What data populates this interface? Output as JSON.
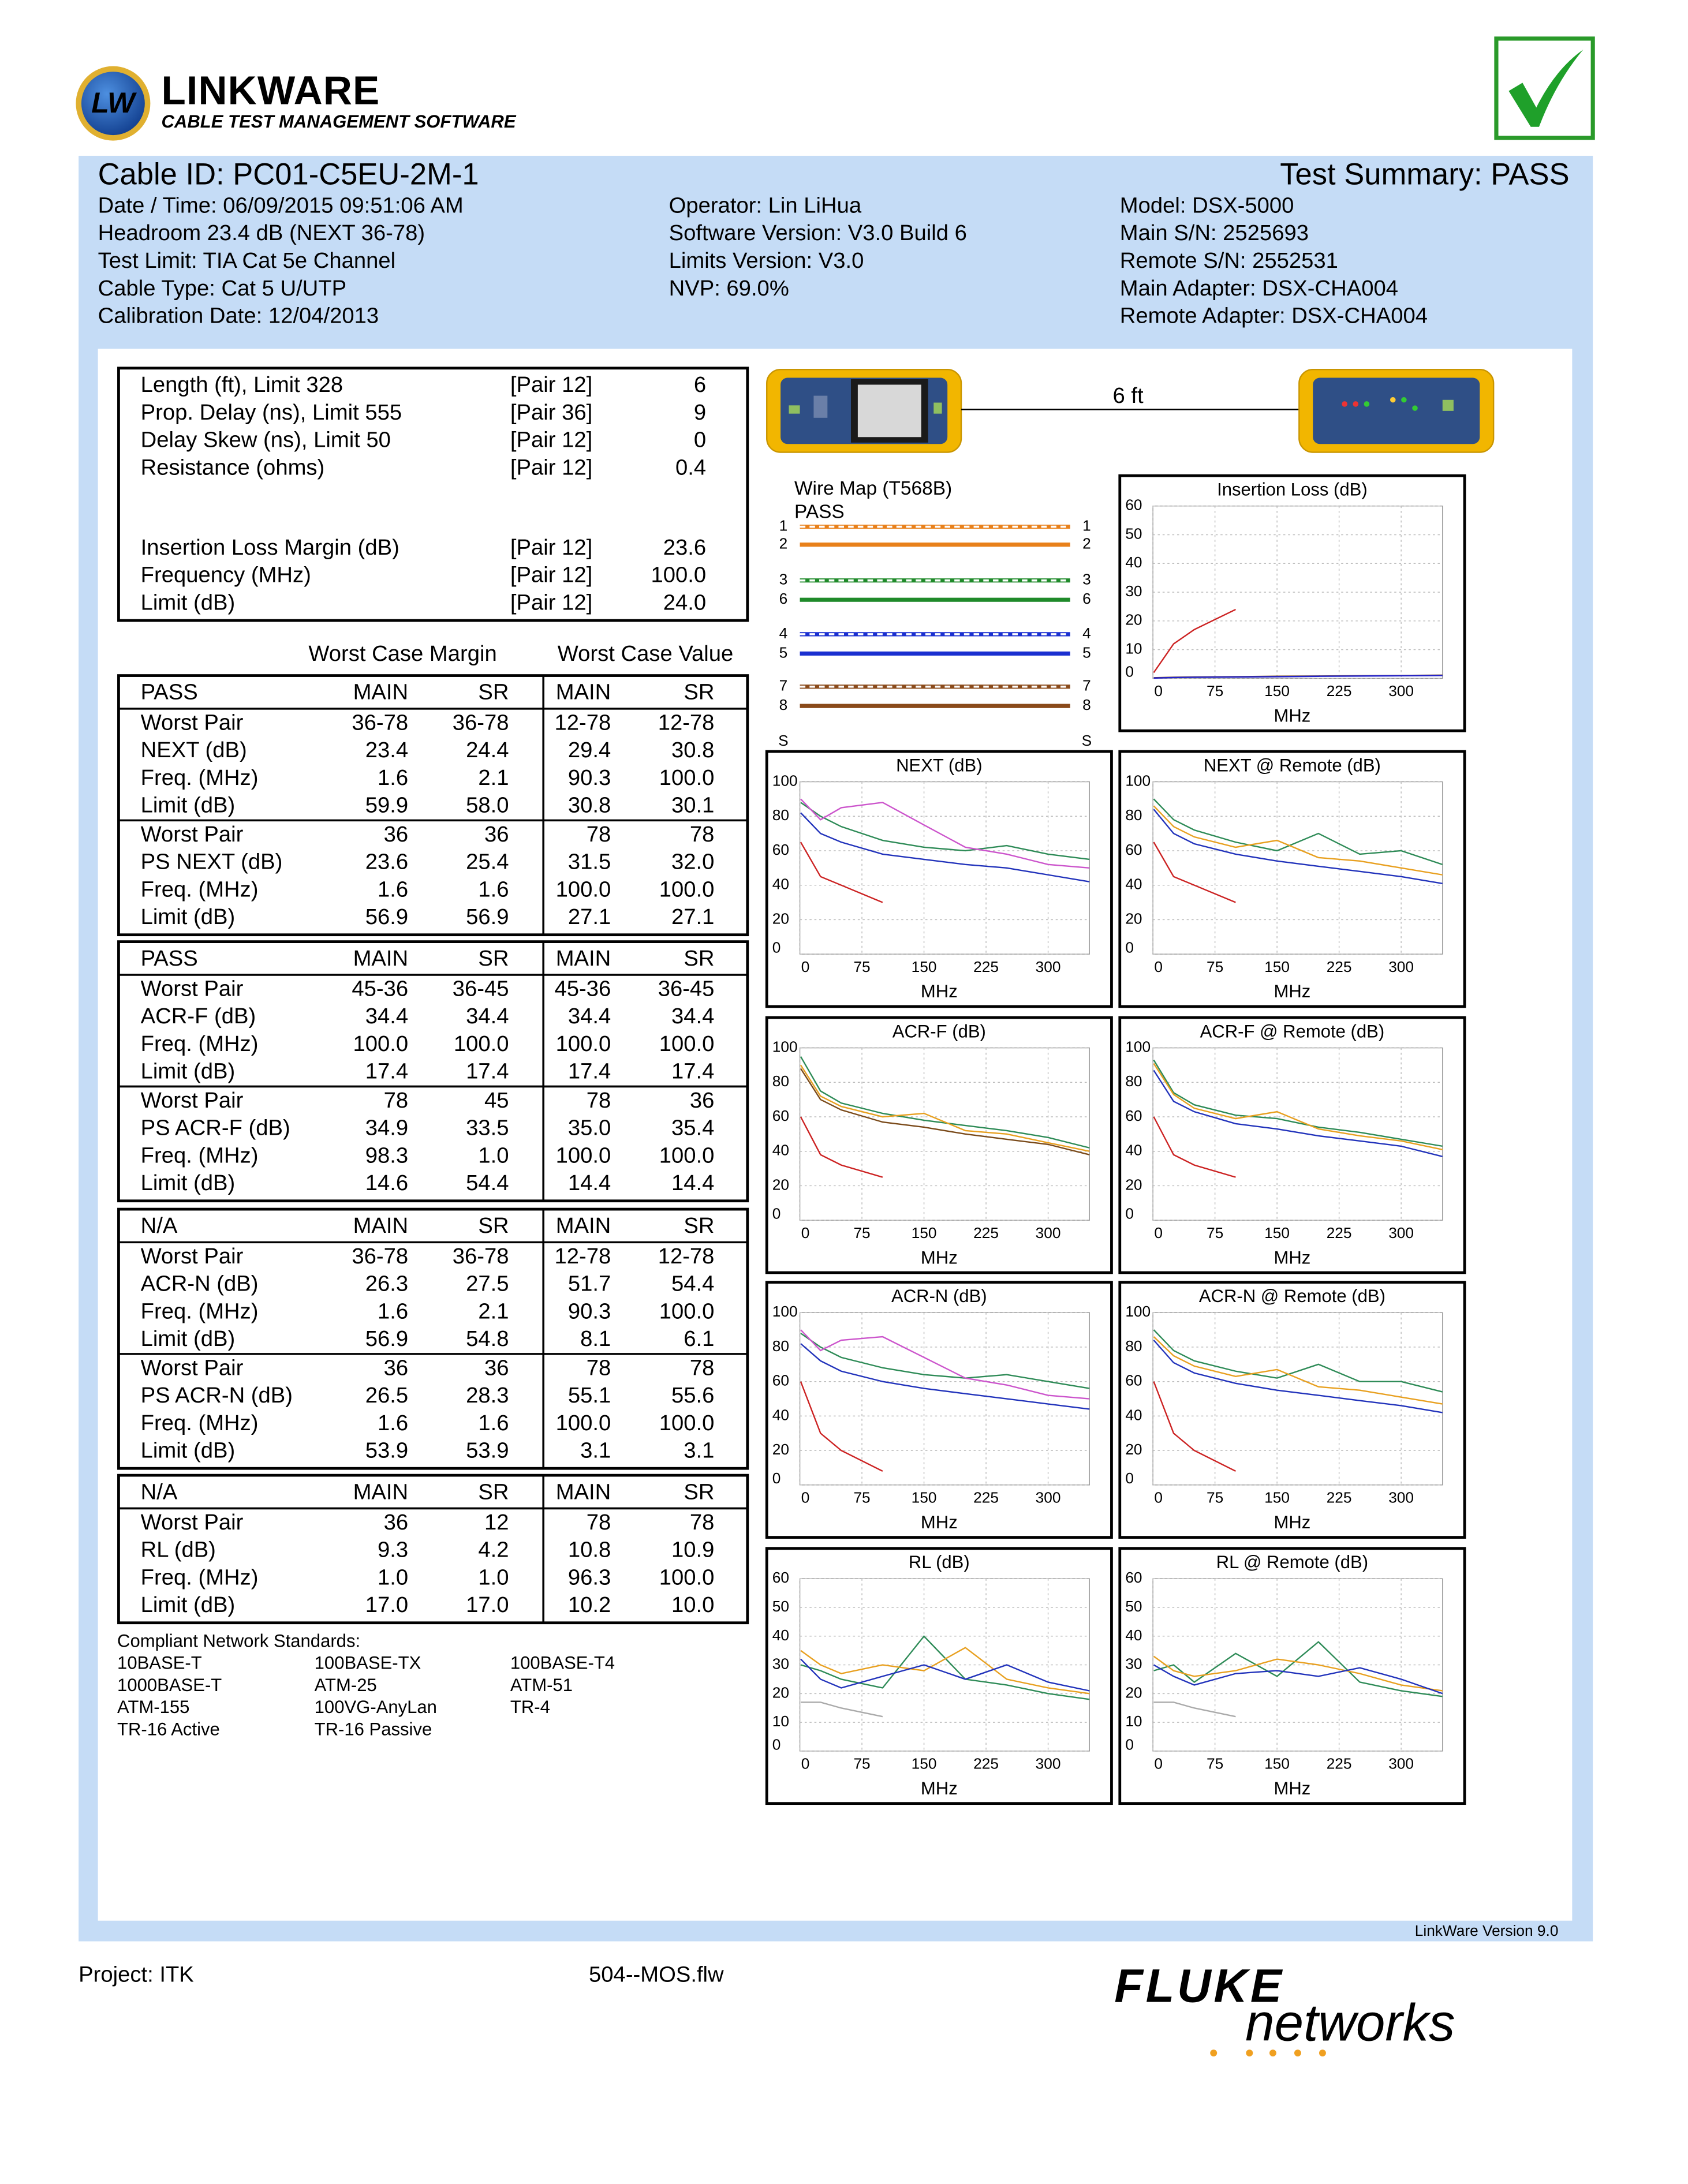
{
  "header": {
    "badge": "LW",
    "title": "LINKWARE",
    "subtitle": "CABLE TEST MANAGEMENT SOFTWARE"
  },
  "summary": {
    "cable_id": "Cable ID: PC01-C5EU-2M-1",
    "test_summary": "Test Summary: PASS",
    "left": [
      "Date / Time: 06/09/2015  09:51:06 AM",
      "Headroom 23.4 dB (NEXT 36-78)",
      "Test Limit: TIA Cat 5e Channel",
      "Cable Type: Cat 5 U/UTP",
      "Calibration Date: 12/04/2013"
    ],
    "middle": [
      "Operator: Lin LiHua",
      "Software Version: V3.0 Build 6",
      "Limits Version: V3.0",
      "NVP: 69.0%"
    ],
    "right": [
      "Model: DSX-5000",
      "Main S/N: 2525693",
      "Remote S/N: 2552531",
      "Main Adapter: DSX-CHA004",
      "Remote Adapter: DSX-CHA004"
    ]
  },
  "basic": {
    "rows": [
      [
        "Length (ft), Limit 328",
        "[Pair 12]",
        "6"
      ],
      [
        "Prop. Delay (ns), Limit 555",
        "[Pair 36]",
        "9"
      ],
      [
        "Delay Skew (ns), Limit 50",
        "[Pair 12]",
        "0"
      ],
      [
        "Resistance (ohms)",
        "[Pair 12]",
        "0.4"
      ]
    ],
    "il_rows": [
      [
        "Insertion Loss Margin (dB)",
        "[Pair 12]",
        "23.6"
      ],
      [
        "Frequency (MHz)",
        "[Pair 12]",
        "100.0"
      ],
      [
        "Limit (dB)",
        "[Pair 12]",
        "24.0"
      ]
    ]
  },
  "worst_case": [
    "Worst Case Margin",
    "Worst Case Value"
  ],
  "tables": [
    {
      "header": [
        "PASS",
        "MAIN",
        "SR",
        "MAIN",
        "SR"
      ],
      "rows": [
        [
          "Worst Pair",
          "36-78",
          "36-78",
          "12-78",
          "12-78"
        ],
        [
          "NEXT (dB)",
          "23.4",
          "24.4",
          "29.4",
          "30.8"
        ],
        [
          "Freq. (MHz)",
          "1.6",
          "2.1",
          "90.3",
          "100.0"
        ],
        [
          "Limit (dB)",
          "59.9",
          "58.0",
          "30.8",
          "30.1"
        ],
        [
          "Worst Pair",
          "36",
          "36",
          "78",
          "78"
        ],
        [
          "PS NEXT (dB)",
          "23.6",
          "25.4",
          "31.5",
          "32.0"
        ],
        [
          "Freq. (MHz)",
          "1.6",
          "1.6",
          "100.0",
          "100.0"
        ],
        [
          "Limit (dB)",
          "56.9",
          "56.9",
          "27.1",
          "27.1"
        ]
      ]
    },
    {
      "header": [
        "PASS",
        "MAIN",
        "SR",
        "MAIN",
        "SR"
      ],
      "rows": [
        [
          "Worst Pair",
          "45-36",
          "36-45",
          "45-36",
          "36-45"
        ],
        [
          "ACR-F (dB)",
          "34.4",
          "34.4",
          "34.4",
          "34.4"
        ],
        [
          "Freq. (MHz)",
          "100.0",
          "100.0",
          "100.0",
          "100.0"
        ],
        [
          "Limit (dB)",
          "17.4",
          "17.4",
          "17.4",
          "17.4"
        ],
        [
          "Worst Pair",
          "78",
          "45",
          "78",
          "36"
        ],
        [
          "PS ACR-F (dB)",
          "34.9",
          "33.5",
          "35.0",
          "35.4"
        ],
        [
          "Freq. (MHz)",
          "98.3",
          "1.0",
          "100.0",
          "100.0"
        ],
        [
          "Limit (dB)",
          "14.6",
          "54.4",
          "14.4",
          "14.4"
        ]
      ]
    },
    {
      "header": [
        "N/A",
        "MAIN",
        "SR",
        "MAIN",
        "SR"
      ],
      "rows": [
        [
          "Worst Pair",
          "36-78",
          "36-78",
          "12-78",
          "12-78"
        ],
        [
          "ACR-N (dB)",
          "26.3",
          "27.5",
          "51.7",
          "54.4"
        ],
        [
          "Freq. (MHz)",
          "1.6",
          "2.1",
          "90.3",
          "100.0"
        ],
        [
          "Limit (dB)",
          "56.9",
          "54.8",
          "8.1",
          "6.1"
        ],
        [
          "Worst Pair",
          "36",
          "36",
          "78",
          "78"
        ],
        [
          "PS ACR-N (dB)",
          "26.5",
          "28.3",
          "55.1",
          "55.6"
        ],
        [
          "Freq. (MHz)",
          "1.6",
          "1.6",
          "100.0",
          "100.0"
        ],
        [
          "Limit (dB)",
          "53.9",
          "53.9",
          "3.1",
          "3.1"
        ]
      ]
    },
    {
      "header": [
        "N/A",
        "MAIN",
        "SR",
        "MAIN",
        "SR"
      ],
      "rows": [
        [
          "Worst Pair",
          "36",
          "12",
          "78",
          "78"
        ],
        [
          "RL (dB)",
          "9.3",
          "4.2",
          "10.8",
          "10.9"
        ],
        [
          "Freq. (MHz)",
          "1.0",
          "1.0",
          "96.3",
          "100.0"
        ],
        [
          "Limit (dB)",
          "17.0",
          "17.0",
          "10.2",
          "10.0"
        ]
      ]
    }
  ],
  "standards": {
    "title": "Compliant Network Standards:",
    "items": [
      [
        "10BASE-T",
        "100BASE-TX",
        "100BASE-T4"
      ],
      [
        "1000BASE-T",
        "ATM-25",
        "ATM-51"
      ],
      [
        "ATM-155",
        "100VG-AnyLan",
        "TR-4"
      ],
      [
        "TR-16 Active",
        "TR-16 Passive"
      ]
    ]
  },
  "cable_length": "6 ft",
  "wiremap": {
    "title": "Wire Map (T568B)",
    "result": "PASS",
    "left": [
      "1",
      "2",
      "3",
      "6",
      "4",
      "5",
      "7",
      "8",
      "S"
    ],
    "right": [
      "1",
      "2",
      "3",
      "6",
      "4",
      "5",
      "7",
      "8",
      "S"
    ]
  },
  "charts": [
    {
      "type": "line",
      "title": "Insertion Loss (dB)",
      "xlabel": "MHz",
      "xlim": [
        0,
        350
      ],
      "ylim": [
        0,
        60
      ],
      "xticks": [
        0,
        75,
        150,
        225,
        300
      ],
      "yticks": [
        0,
        10,
        20,
        30,
        40,
        50,
        60
      ],
      "x": [
        1,
        25,
        50,
        100,
        150,
        200,
        250,
        300,
        350
      ],
      "series": [
        {
          "color": "#cc2222",
          "values": [
            2,
            12,
            17,
            24,
            null,
            null,
            null,
            null,
            null
          ]
        },
        {
          "color": "#7a4a1a",
          "values": [
            0.2,
            0.4,
            0.5,
            0.6,
            0.7,
            0.8,
            0.9,
            1.0,
            1.1
          ]
        },
        {
          "color": "#2222cc",
          "values": [
            0.1,
            0.3,
            0.4,
            0.5,
            0.6,
            0.7,
            0.8,
            0.9,
            1.0
          ]
        }
      ]
    },
    {
      "type": "line",
      "title": "NEXT (dB)",
      "xlabel": "MHz",
      "xlim": [
        0,
        350
      ],
      "ylim": [
        0,
        100
      ],
      "xticks": [
        0,
        75,
        150,
        225,
        300
      ],
      "yticks": [
        0,
        20,
        40,
        60,
        80,
        100
      ],
      "x": [
        1,
        25,
        50,
        100,
        150,
        200,
        250,
        300,
        350
      ],
      "series": [
        {
          "color": "#cc2222",
          "values": [
            65,
            45,
            40,
            30,
            null,
            null,
            null,
            null,
            null
          ]
        },
        {
          "color": "#2e8b57",
          "values": [
            88,
            80,
            74,
            66,
            62,
            60,
            63,
            58,
            55
          ]
        },
        {
          "color": "#cc55cc",
          "values": [
            90,
            78,
            85,
            88,
            75,
            62,
            58,
            52,
            50
          ]
        },
        {
          "color": "#2233bb",
          "values": [
            82,
            70,
            65,
            58,
            55,
            52,
            50,
            46,
            42
          ]
        }
      ]
    },
    {
      "type": "line",
      "title": "NEXT @ Remote (dB)",
      "xlabel": "MHz",
      "xlim": [
        0,
        350
      ],
      "ylim": [
        0,
        100
      ],
      "xticks": [
        0,
        75,
        150,
        225,
        300
      ],
      "yticks": [
        0,
        20,
        40,
        60,
        80,
        100
      ],
      "x": [
        1,
        25,
        50,
        100,
        150,
        200,
        250,
        300,
        350
      ],
      "series": [
        {
          "color": "#cc2222",
          "values": [
            65,
            45,
            40,
            30,
            null,
            null,
            null,
            null,
            null
          ]
        },
        {
          "color": "#2e8b57",
          "values": [
            90,
            78,
            72,
            65,
            60,
            70,
            58,
            60,
            52
          ]
        },
        {
          "color": "#e8a020",
          "values": [
            86,
            74,
            68,
            62,
            66,
            56,
            54,
            50,
            46
          ]
        },
        {
          "color": "#2233bb",
          "values": [
            84,
            70,
            64,
            58,
            54,
            51,
            48,
            45,
            41
          ]
        }
      ]
    },
    {
      "type": "line",
      "title": "ACR-F (dB)",
      "xlabel": "MHz",
      "xlim": [
        0,
        350
      ],
      "ylim": [
        0,
        100
      ],
      "xticks": [
        0,
        75,
        150,
        225,
        300
      ],
      "yticks": [
        0,
        20,
        40,
        60,
        80,
        100
      ],
      "x": [
        1,
        25,
        50,
        100,
        150,
        200,
        250,
        300,
        350
      ],
      "series": [
        {
          "color": "#cc2222",
          "values": [
            60,
            38,
            32,
            25,
            null,
            null,
            null,
            null,
            null
          ]
        },
        {
          "color": "#2e8b57",
          "values": [
            95,
            75,
            68,
            62,
            58,
            55,
            52,
            48,
            42
          ]
        },
        {
          "color": "#e8a020",
          "values": [
            90,
            72,
            66,
            60,
            62,
            52,
            50,
            45,
            40
          ]
        },
        {
          "color": "#7a4a1a",
          "values": [
            88,
            70,
            64,
            57,
            54,
            50,
            47,
            44,
            38
          ]
        }
      ]
    },
    {
      "type": "line",
      "title": "ACR-F @ Remote (dB)",
      "xlabel": "MHz",
      "xlim": [
        0,
        350
      ],
      "ylim": [
        0,
        100
      ],
      "xticks": [
        0,
        75,
        150,
        225,
        300
      ],
      "yticks": [
        0,
        20,
        40,
        60,
        80,
        100
      ],
      "x": [
        1,
        25,
        50,
        100,
        150,
        200,
        250,
        300,
        350
      ],
      "series": [
        {
          "color": "#cc2222",
          "values": [
            60,
            38,
            32,
            25,
            null,
            null,
            null,
            null,
            null
          ]
        },
        {
          "color": "#2e8b57",
          "values": [
            93,
            74,
            67,
            61,
            59,
            54,
            51,
            47,
            43
          ]
        },
        {
          "color": "#e8a020",
          "values": [
            91,
            73,
            65,
            59,
            63,
            53,
            49,
            46,
            41
          ]
        },
        {
          "color": "#2233bb",
          "values": [
            87,
            69,
            63,
            56,
            53,
            49,
            46,
            43,
            37
          ]
        }
      ]
    },
    {
      "type": "line",
      "title": "ACR-N (dB)",
      "xlabel": "MHz",
      "xlim": [
        0,
        350
      ],
      "ylim": [
        0,
        100
      ],
      "xticks": [
        0,
        75,
        150,
        225,
        300
      ],
      "yticks": [
        0,
        20,
        40,
        60,
        80,
        100
      ],
      "x": [
        1,
        25,
        50,
        100,
        150,
        200,
        250,
        300,
        350
      ],
      "series": [
        {
          "color": "#cc2222",
          "values": [
            60,
            30,
            20,
            8,
            null,
            null,
            null,
            null,
            null
          ]
        },
        {
          "color": "#2e8b57",
          "values": [
            88,
            80,
            74,
            68,
            64,
            62,
            64,
            60,
            56
          ]
        },
        {
          "color": "#cc55cc",
          "values": [
            90,
            78,
            84,
            86,
            74,
            62,
            58,
            52,
            50
          ]
        },
        {
          "color": "#2233bb",
          "values": [
            82,
            72,
            66,
            60,
            56,
            53,
            50,
            47,
            44
          ]
        }
      ]
    },
    {
      "type": "line",
      "title": "ACR-N @ Remote (dB)",
      "xlabel": "MHz",
      "xlim": [
        0,
        350
      ],
      "ylim": [
        0,
        100
      ],
      "xticks": [
        0,
        75,
        150,
        225,
        300
      ],
      "yticks": [
        0,
        20,
        40,
        60,
        80,
        100
      ],
      "x": [
        1,
        25,
        50,
        100,
        150,
        200,
        250,
        300,
        350
      ],
      "series": [
        {
          "color": "#cc2222",
          "values": [
            60,
            30,
            20,
            8,
            null,
            null,
            null,
            null,
            null
          ]
        },
        {
          "color": "#2e8b57",
          "values": [
            90,
            78,
            72,
            66,
            62,
            70,
            60,
            60,
            54
          ]
        },
        {
          "color": "#e8a020",
          "values": [
            86,
            75,
            69,
            63,
            67,
            57,
            55,
            51,
            47
          ]
        },
        {
          "color": "#2233bb",
          "values": [
            84,
            71,
            65,
            59,
            55,
            52,
            49,
            46,
            42
          ]
        }
      ]
    },
    {
      "type": "line",
      "title": "RL (dB)",
      "xlabel": "MHz",
      "xlim": [
        0,
        350
      ],
      "ylim": [
        0,
        60
      ],
      "xticks": [
        0,
        75,
        150,
        225,
        300
      ],
      "yticks": [
        0,
        10,
        20,
        30,
        40,
        50,
        60
      ],
      "x": [
        1,
        25,
        50,
        100,
        150,
        200,
        250,
        300,
        350
      ],
      "series": [
        {
          "color": "#aaaaaa",
          "values": [
            17,
            17,
            15,
            12,
            null,
            null,
            null,
            null,
            null
          ]
        },
        {
          "color": "#2e8b57",
          "values": [
            30,
            28,
            25,
            22,
            40,
            25,
            23,
            20,
            18
          ]
        },
        {
          "color": "#e8a020",
          "values": [
            35,
            30,
            27,
            30,
            28,
            36,
            25,
            22,
            20
          ]
        },
        {
          "color": "#2233bb",
          "values": [
            32,
            25,
            22,
            26,
            30,
            25,
            30,
            24,
            21
          ]
        }
      ]
    },
    {
      "type": "line",
      "title": "RL @ Remote (dB)",
      "xlabel": "MHz",
      "xlim": [
        0,
        350
      ],
      "ylim": [
        0,
        60
      ],
      "xticks": [
        0,
        75,
        150,
        225,
        300
      ],
      "yticks": [
        0,
        10,
        20,
        30,
        40,
        50,
        60
      ],
      "x": [
        1,
        25,
        50,
        100,
        150,
        200,
        250,
        300,
        350
      ],
      "series": [
        {
          "color": "#aaaaaa",
          "values": [
            17,
            17,
            15,
            12,
            null,
            null,
            null,
            null,
            null
          ]
        },
        {
          "color": "#2e8b57",
          "values": [
            28,
            30,
            24,
            34,
            26,
            38,
            24,
            21,
            19
          ]
        },
        {
          "color": "#e8a020",
          "values": [
            33,
            28,
            26,
            28,
            32,
            30,
            27,
            23,
            21
          ]
        },
        {
          "color": "#2233bb",
          "values": [
            30,
            26,
            23,
            27,
            28,
            26,
            29,
            25,
            20
          ]
        }
      ]
    }
  ],
  "footer": {
    "version": "LinkWare Version 9.0",
    "project": "Project: ITK",
    "file": "504--MOS.flw",
    "brand": "FLUKE",
    "brand_sub": "networks"
  }
}
